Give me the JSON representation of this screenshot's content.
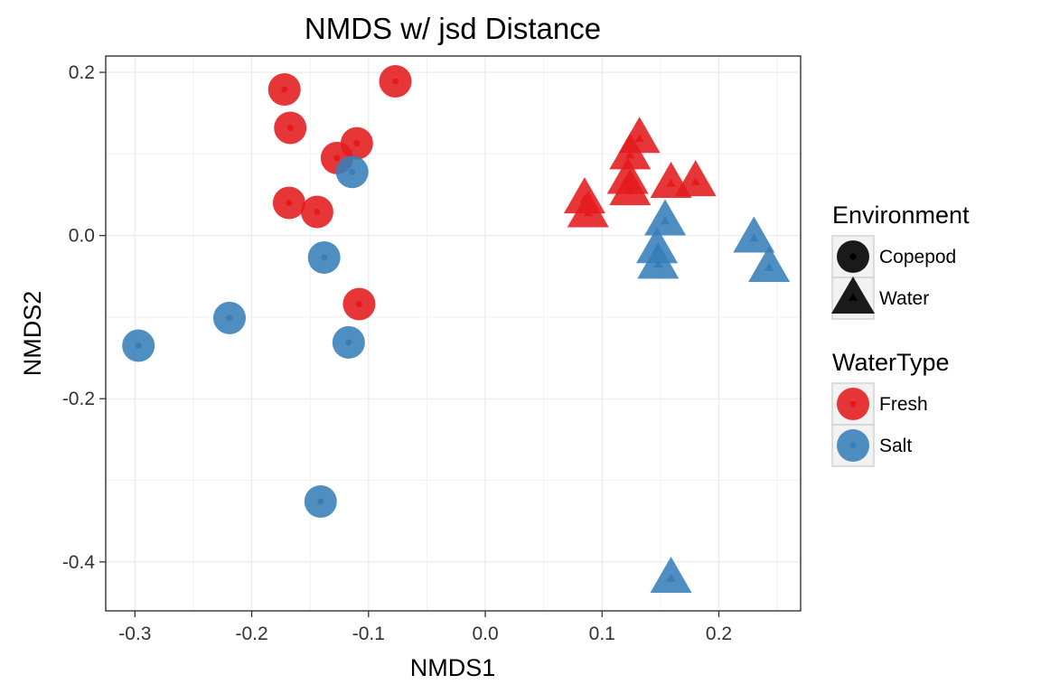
{
  "chart_data": {
    "type": "scatter",
    "title": "NMDS w/ jsd Distance",
    "xlabel": "NMDS1",
    "ylabel": "NMDS2",
    "xlim": [
      -0.325,
      0.27
    ],
    "ylim": [
      -0.46,
      0.22
    ],
    "x_ticks": [
      -0.3,
      -0.2,
      -0.1,
      0.0,
      0.1,
      0.2
    ],
    "x_tick_labels": [
      "-0.3",
      "-0.2",
      "-0.1",
      "0.0",
      "0.1",
      "0.2"
    ],
    "y_ticks": [
      -0.4,
      -0.2,
      0.0,
      0.2
    ],
    "y_tick_labels": [
      "-0.4",
      "-0.2",
      "0.0",
      "0.2"
    ],
    "grid": true,
    "legend_position": "right",
    "colors": {
      "Fresh": "#e41a1c",
      "Salt": "#377eb8",
      "legend_shape": "#1a1a1a"
    },
    "legends": [
      {
        "title": "Environment",
        "items": [
          {
            "label": "Copepod",
            "shape": "circle"
          },
          {
            "label": "Water",
            "shape": "triangle"
          }
        ]
      },
      {
        "title": "WaterType",
        "items": [
          {
            "label": "Fresh",
            "color": "#e41a1c"
          },
          {
            "label": "Salt",
            "color": "#377eb8"
          }
        ]
      }
    ],
    "points": [
      {
        "x": -0.172,
        "y": 0.179,
        "environment": "Copepod",
        "water_type": "Fresh"
      },
      {
        "x": -0.077,
        "y": 0.189,
        "environment": "Copepod",
        "water_type": "Fresh"
      },
      {
        "x": -0.167,
        "y": 0.132,
        "environment": "Copepod",
        "water_type": "Fresh"
      },
      {
        "x": -0.11,
        "y": 0.113,
        "environment": "Copepod",
        "water_type": "Fresh"
      },
      {
        "x": -0.127,
        "y": 0.095,
        "environment": "Copepod",
        "water_type": "Fresh"
      },
      {
        "x": -0.168,
        "y": 0.04,
        "environment": "Copepod",
        "water_type": "Fresh"
      },
      {
        "x": -0.144,
        "y": 0.029,
        "environment": "Copepod",
        "water_type": "Fresh"
      },
      {
        "x": -0.108,
        "y": -0.084,
        "environment": "Copepod",
        "water_type": "Fresh"
      },
      {
        "x": -0.114,
        "y": 0.078,
        "environment": "Copepod",
        "water_type": "Salt"
      },
      {
        "x": -0.138,
        "y": -0.027,
        "environment": "Copepod",
        "water_type": "Salt"
      },
      {
        "x": -0.219,
        "y": -0.101,
        "environment": "Copepod",
        "water_type": "Salt"
      },
      {
        "x": -0.297,
        "y": -0.135,
        "environment": "Copepod",
        "water_type": "Salt"
      },
      {
        "x": -0.117,
        "y": -0.131,
        "environment": "Copepod",
        "water_type": "Salt"
      },
      {
        "x": -0.141,
        "y": -0.326,
        "environment": "Copepod",
        "water_type": "Salt"
      },
      {
        "x": 0.132,
        "y": 0.118,
        "environment": "Water",
        "water_type": "Fresh"
      },
      {
        "x": 0.124,
        "y": 0.098,
        "environment": "Water",
        "water_type": "Fresh"
      },
      {
        "x": 0.122,
        "y": 0.068,
        "environment": "Water",
        "water_type": "Fresh"
      },
      {
        "x": 0.124,
        "y": 0.054,
        "environment": "Water",
        "water_type": "Fresh"
      },
      {
        "x": 0.159,
        "y": 0.063,
        "environment": "Water",
        "water_type": "Fresh"
      },
      {
        "x": 0.18,
        "y": 0.065,
        "environment": "Water",
        "water_type": "Fresh"
      },
      {
        "x": 0.085,
        "y": 0.044,
        "environment": "Water",
        "water_type": "Fresh"
      },
      {
        "x": 0.088,
        "y": 0.027,
        "environment": "Water",
        "water_type": "Fresh"
      },
      {
        "x": 0.154,
        "y": 0.017,
        "environment": "Water",
        "water_type": "Salt"
      },
      {
        "x": 0.147,
        "y": -0.017,
        "environment": "Water",
        "water_type": "Salt"
      },
      {
        "x": 0.148,
        "y": -0.036,
        "environment": "Water",
        "water_type": "Salt"
      },
      {
        "x": 0.23,
        "y": -0.004,
        "environment": "Water",
        "water_type": "Salt"
      },
      {
        "x": 0.243,
        "y": -0.04,
        "environment": "Water",
        "water_type": "Salt"
      },
      {
        "x": 0.159,
        "y": -0.421,
        "environment": "Water",
        "water_type": "Salt"
      }
    ]
  }
}
